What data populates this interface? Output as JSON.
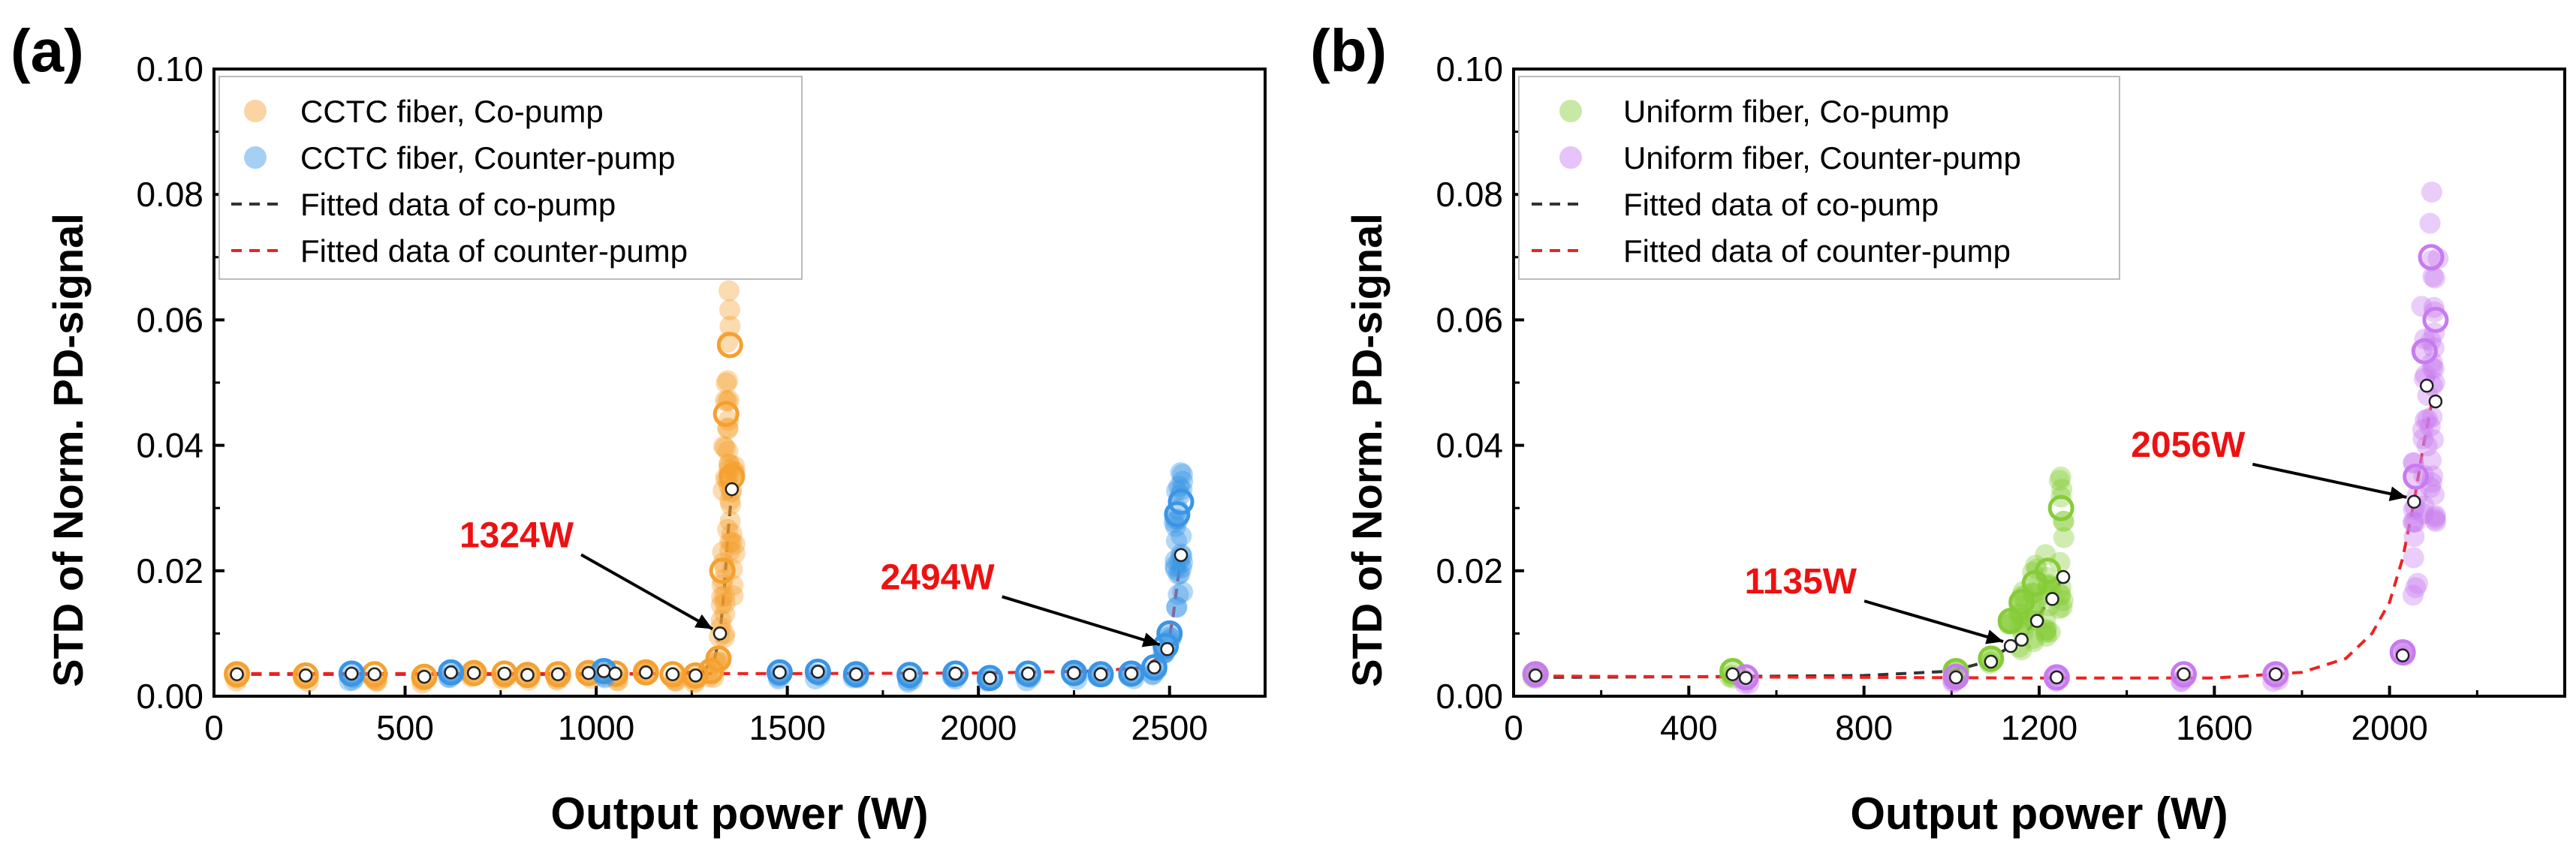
{
  "chart_data": [
    {
      "panel_label": "(a)",
      "type": "scatter",
      "xlabel": "Output power (W)",
      "ylabel": "STD of Norm. PD-signal",
      "xlim": [
        0,
        2750
      ],
      "ylim": [
        0,
        0.1
      ],
      "xticks": [
        0,
        500,
        1000,
        1500,
        2000,
        2500
      ],
      "yticks": [
        0.0,
        0.02,
        0.04,
        0.06,
        0.08,
        0.1
      ],
      "xtick_labels": [
        "0",
        "500",
        "1000",
        "1500",
        "2000",
        "2500"
      ],
      "ytick_labels": [
        "0.00",
        "0.02",
        "0.04",
        "0.06",
        "0.08",
        "0.10"
      ],
      "series": [
        {
          "name": "CCTC fiber, Co-pump",
          "color": "#f5a030",
          "x": [
            60,
            240,
            420,
            550,
            680,
            760,
            820,
            900,
            980,
            1050,
            1130,
            1200,
            1260,
            1300,
            1320,
            1330,
            1340,
            1350,
            1355
          ],
          "y": [
            0.0035,
            0.0033,
            0.0035,
            0.0031,
            0.0037,
            0.0036,
            0.0034,
            0.0035,
            0.0037,
            0.0036,
            0.0038,
            0.0035,
            0.0033,
            0.004,
            0.006,
            0.02,
            0.045,
            0.056,
            0.035
          ]
        },
        {
          "name": "CCTC fiber, Counter-pump",
          "color": "#3a95e6",
          "x": [
            360,
            620,
            1020,
            1480,
            1580,
            1680,
            1820,
            1940,
            2030,
            2130,
            2250,
            2320,
            2400,
            2460,
            2490,
            2500,
            2520,
            2530
          ],
          "y": [
            0.0036,
            0.0038,
            0.004,
            0.0038,
            0.0039,
            0.0035,
            0.0034,
            0.0036,
            0.0029,
            0.0036,
            0.0037,
            0.0035,
            0.0036,
            0.0046,
            0.008,
            0.01,
            0.029,
            0.031
          ]
        }
      ],
      "fits": [
        {
          "name": "Fitted data of co-pump",
          "color": "#333333",
          "x": [
            50,
            500,
            1000,
            1200,
            1280,
            1310,
            1324,
            1335,
            1345,
            1355
          ],
          "y": [
            0.0035,
            0.0035,
            0.0035,
            0.0036,
            0.004,
            0.006,
            0.01,
            0.017,
            0.026,
            0.033
          ]
        },
        {
          "name": "Fitted data of counter-pump",
          "color": "#ee2222",
          "x": [
            50,
            500,
            1000,
            1500,
            2000,
            2300,
            2420,
            2470,
            2494,
            2510,
            2530
          ],
          "y": [
            0.0036,
            0.0036,
            0.0036,
            0.0036,
            0.0037,
            0.004,
            0.0045,
            0.006,
            0.0075,
            0.013,
            0.0225
          ]
        }
      ],
      "marker_points": [
        {
          "x": 60,
          "y": 0.0035
        },
        {
          "x": 240,
          "y": 0.0033
        },
        {
          "x": 360,
          "y": 0.0036
        },
        {
          "x": 420,
          "y": 0.0035
        },
        {
          "x": 550,
          "y": 0.0031
        },
        {
          "x": 620,
          "y": 0.0038
        },
        {
          "x": 680,
          "y": 0.0037
        },
        {
          "x": 760,
          "y": 0.0036
        },
        {
          "x": 820,
          "y": 0.0034
        },
        {
          "x": 900,
          "y": 0.0035
        },
        {
          "x": 980,
          "y": 0.0037
        },
        {
          "x": 1020,
          "y": 0.004
        },
        {
          "x": 1050,
          "y": 0.0036
        },
        {
          "x": 1130,
          "y": 0.0038
        },
        {
          "x": 1200,
          "y": 0.0035
        },
        {
          "x": 1260,
          "y": 0.0033
        },
        {
          "x": 1324,
          "y": 0.01
        },
        {
          "x": 1355,
          "y": 0.033
        },
        {
          "x": 1480,
          "y": 0.0038
        },
        {
          "x": 1580,
          "y": 0.0039
        },
        {
          "x": 1680,
          "y": 0.0035
        },
        {
          "x": 1820,
          "y": 0.0034
        },
        {
          "x": 1940,
          "y": 0.0036
        },
        {
          "x": 2030,
          "y": 0.0029
        },
        {
          "x": 2130,
          "y": 0.0036
        },
        {
          "x": 2250,
          "y": 0.0037
        },
        {
          "x": 2320,
          "y": 0.0035
        },
        {
          "x": 2400,
          "y": 0.0036
        },
        {
          "x": 2460,
          "y": 0.0046
        },
        {
          "x": 2494,
          "y": 0.0075
        },
        {
          "x": 2530,
          "y": 0.0225
        }
      ],
      "annotations": [
        {
          "text": "1324W",
          "x": 1324,
          "y": 0.01
        },
        {
          "text": "2494W",
          "x": 2494,
          "y": 0.0075
        }
      ]
    },
    {
      "panel_label": "(b)",
      "type": "scatter",
      "xlabel": "Output power (W)",
      "ylabel": "STD of Norm. PD-signal",
      "xlim": [
        0,
        2400
      ],
      "ylim": [
        0,
        0.1
      ],
      "xticks": [
        0,
        400,
        800,
        1200,
        1600,
        2000
      ],
      "yticks": [
        0.0,
        0.02,
        0.04,
        0.06,
        0.08,
        0.1
      ],
      "xtick_labels": [
        "0",
        "400",
        "800",
        "1200",
        "1600",
        "2000"
      ],
      "ytick_labels": [
        "0.00",
        "0.02",
        "0.04",
        "0.06",
        "0.08",
        "0.10"
      ],
      "series": [
        {
          "name": "Uniform fiber, Co-pump",
          "color": "#86cc38",
          "x": [
            50,
            500,
            1010,
            1090,
            1135,
            1160,
            1190,
            1220,
            1250
          ],
          "y": [
            0.0035,
            0.004,
            0.004,
            0.006,
            0.012,
            0.015,
            0.018,
            0.02,
            0.03
          ]
        },
        {
          "name": "Uniform fiber, Counter-pump",
          "color": "#c87bf0",
          "x": [
            50,
            530,
            1010,
            1240,
            1530,
            1740,
            2030,
            2060,
            2080,
            2095,
            2105
          ],
          "y": [
            0.0035,
            0.003,
            0.0031,
            0.003,
            0.0035,
            0.0035,
            0.007,
            0.035,
            0.055,
            0.07,
            0.06
          ]
        }
      ],
      "fits": [
        {
          "name": "Fitted data of co-pump",
          "color": "#333333",
          "x": [
            50,
            400,
            800,
            1000,
            1080,
            1135,
            1180,
            1220,
            1255
          ],
          "y": [
            0.003,
            0.0031,
            0.0033,
            0.004,
            0.0055,
            0.008,
            0.011,
            0.015,
            0.019
          ]
        },
        {
          "name": "Fitted data of counter-pump",
          "color": "#ee2222",
          "x": [
            50,
            400,
            800,
            1200,
            1600,
            1800,
            1900,
            1960,
            2000,
            2030,
            2056,
            2080,
            2100
          ],
          "y": [
            0.0032,
            0.0031,
            0.003,
            0.0029,
            0.0029,
            0.0038,
            0.006,
            0.01,
            0.015,
            0.022,
            0.031,
            0.041,
            0.048
          ]
        }
      ],
      "marker_points": [
        {
          "x": 50,
          "y": 0.0033
        },
        {
          "x": 500,
          "y": 0.0035
        },
        {
          "x": 530,
          "y": 0.0029
        },
        {
          "x": 1010,
          "y": 0.003
        },
        {
          "x": 1090,
          "y": 0.0055
        },
        {
          "x": 1135,
          "y": 0.008
        },
        {
          "x": 1160,
          "y": 0.009
        },
        {
          "x": 1195,
          "y": 0.012
        },
        {
          "x": 1230,
          "y": 0.0155
        },
        {
          "x": 1255,
          "y": 0.019
        },
        {
          "x": 1240,
          "y": 0.003
        },
        {
          "x": 1530,
          "y": 0.0035
        },
        {
          "x": 1740,
          "y": 0.0035
        },
        {
          "x": 2030,
          "y": 0.0065
        },
        {
          "x": 2056,
          "y": 0.031
        },
        {
          "x": 2085,
          "y": 0.0495
        },
        {
          "x": 2105,
          "y": 0.047
        }
      ],
      "annotations": [
        {
          "text": "1135W",
          "x": 1135,
          "y": 0.008
        },
        {
          "text": "2056W",
          "x": 2056,
          "y": 0.031
        }
      ]
    }
  ]
}
